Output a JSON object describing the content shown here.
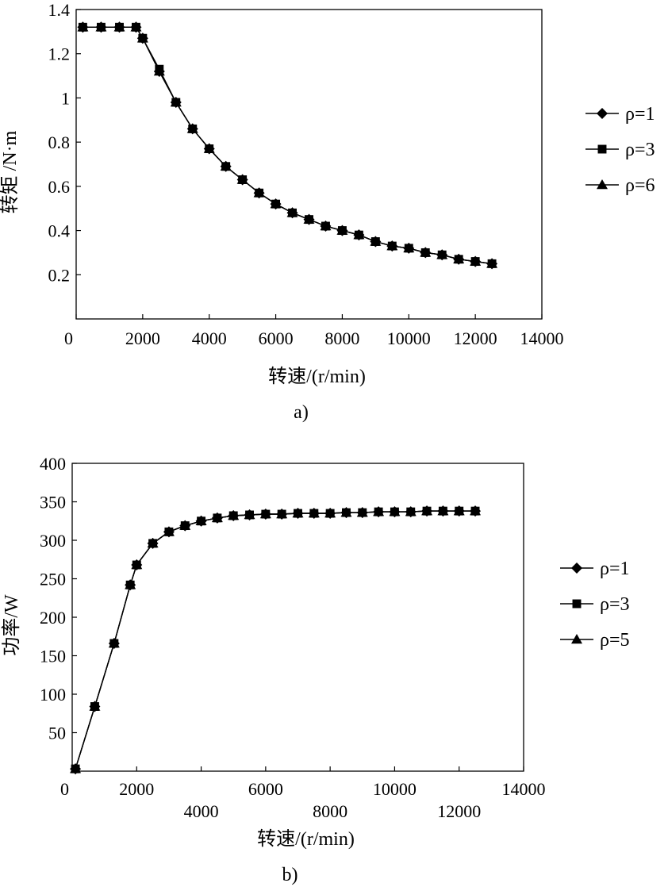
{
  "chart_data": [
    {
      "type": "line",
      "panel_label": "a)",
      "xlabel": "转速/(r/min)",
      "ylabel": "转矩 /N·m",
      "xlim": [
        0,
        14000
      ],
      "ylim": [
        0,
        1.4
      ],
      "xticks": [
        "0",
        "2000",
        "4000",
        "6000",
        "8000",
        "10000",
        "12000",
        "14000"
      ],
      "yticks": [
        "0.2",
        "0.4",
        "0.6",
        "0.8",
        "1",
        "1.2",
        "1.4"
      ],
      "grid": false,
      "legend_position": "right",
      "x": [
        200,
        750,
        1300,
        1800,
        2000,
        2500,
        3000,
        3500,
        4000,
        4500,
        5000,
        5500,
        6000,
        6500,
        7000,
        7500,
        8000,
        8500,
        9000,
        9500,
        10000,
        10500,
        11000,
        11500,
        12000,
        12500
      ],
      "series": [
        {
          "name": "ρ=1",
          "marker": "diamond",
          "values": [
            1.32,
            1.32,
            1.32,
            1.32,
            1.27,
            1.12,
            0.98,
            0.86,
            0.77,
            0.69,
            0.63,
            0.57,
            0.52,
            0.48,
            0.45,
            0.42,
            0.4,
            0.38,
            0.35,
            0.33,
            0.32,
            0.3,
            0.29,
            0.27,
            0.26,
            0.25
          ]
        },
        {
          "name": "ρ=3",
          "marker": "square",
          "values": [
            1.32,
            1.32,
            1.32,
            1.32,
            1.27,
            1.13,
            0.98,
            0.86,
            0.77,
            0.69,
            0.63,
            0.57,
            0.52,
            0.48,
            0.45,
            0.42,
            0.4,
            0.38,
            0.35,
            0.33,
            0.32,
            0.3,
            0.29,
            0.27,
            0.26,
            0.25
          ]
        },
        {
          "name": "ρ=6",
          "marker": "triangle",
          "values": [
            1.32,
            1.32,
            1.32,
            1.32,
            1.27,
            1.12,
            0.98,
            0.86,
            0.77,
            0.69,
            0.63,
            0.57,
            0.52,
            0.48,
            0.45,
            0.42,
            0.4,
            0.38,
            0.35,
            0.33,
            0.32,
            0.3,
            0.29,
            0.27,
            0.26,
            0.25
          ]
        }
      ]
    },
    {
      "type": "line",
      "panel_label": "b)",
      "xlabel": "转速/(r/min)",
      "ylabel": "功率/W",
      "xlim": [
        0,
        14000
      ],
      "ylim": [
        0,
        400
      ],
      "xticks": [
        "0",
        "2000",
        "4000",
        "6000",
        "8000",
        "10000",
        "12000",
        "14000"
      ],
      "yticks": [
        "50",
        "100",
        "150",
        "200",
        "250",
        "300",
        "350",
        "400"
      ],
      "grid": false,
      "legend_position": "right",
      "x": [
        100,
        700,
        1300,
        1800,
        2000,
        2500,
        3000,
        3500,
        4000,
        4500,
        5000,
        5500,
        6000,
        6500,
        7000,
        7500,
        8000,
        8500,
        9000,
        9500,
        10000,
        10500,
        11000,
        11500,
        12000,
        12500
      ],
      "series": [
        {
          "name": "ρ=1",
          "marker": "diamond",
          "values": [
            3,
            84,
            166,
            242,
            268,
            296,
            311,
            319,
            325,
            329,
            332,
            333,
            334,
            334,
            335,
            335,
            335,
            336,
            336,
            337,
            337,
            337,
            338,
            338,
            338,
            338
          ]
        },
        {
          "name": "ρ=3",
          "marker": "square",
          "values": [
            3,
            84,
            166,
            242,
            268,
            296,
            311,
            319,
            325,
            329,
            332,
            333,
            334,
            334,
            335,
            335,
            335,
            336,
            336,
            337,
            337,
            337,
            338,
            338,
            338,
            338
          ]
        },
        {
          "name": "ρ=5",
          "marker": "triangle",
          "values": [
            3,
            84,
            166,
            242,
            268,
            296,
            311,
            319,
            325,
            329,
            332,
            333,
            334,
            334,
            335,
            335,
            335,
            336,
            336,
            337,
            337,
            337,
            338,
            338,
            338,
            338
          ]
        }
      ]
    }
  ]
}
